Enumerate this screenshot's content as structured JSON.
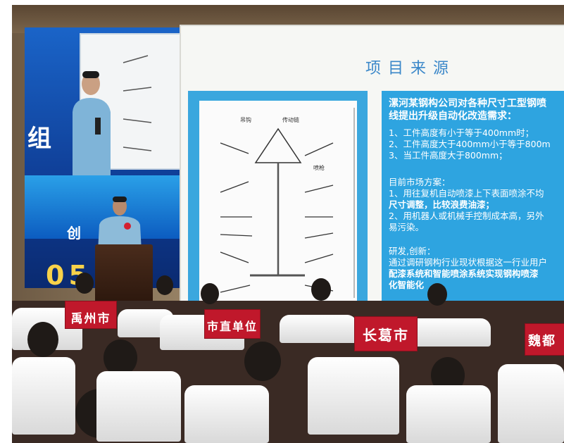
{
  "led_screen": {
    "text_zu": "组",
    "text_chuang": "创",
    "digits": "05"
  },
  "slide": {
    "title": "项目来源",
    "lines": [
      "漯河某钢构公司对各种尺寸工型钢喷",
      "线提出升级自动化改造需求：",
      "1、工件高度有小于等于400mm时；",
      "2、工件高度大于400mm小于等于800m",
      "3、当工件高度大于800mm；",
      "目前市场方案：",
      "1、用往复机自动喷漆上下表面喷涂不均",
      "尺寸调整，比较浪费油漆；",
      "2、用机器人或机械手控制成本高，另外",
      "易污染。",
      "研发,创新：",
      "通过调研钢构行业现状根据这一行业用户",
      "配漆系统和智能喷涂系统实现钢构喷漆",
      "化智能化"
    ],
    "drawing_labels": [
      "吊钩",
      "传动链",
      "喷枪"
    ]
  },
  "placards": [
    {
      "text": "禹州市"
    },
    {
      "text": "市直单位"
    },
    {
      "text": "长葛市"
    },
    {
      "text": "魏都"
    }
  ],
  "colors": {
    "slide_blue": "#2ea4e0",
    "title_blue": "#3a87c9",
    "placard_red": "#c0182b",
    "led_blue": "#1a64c8"
  }
}
